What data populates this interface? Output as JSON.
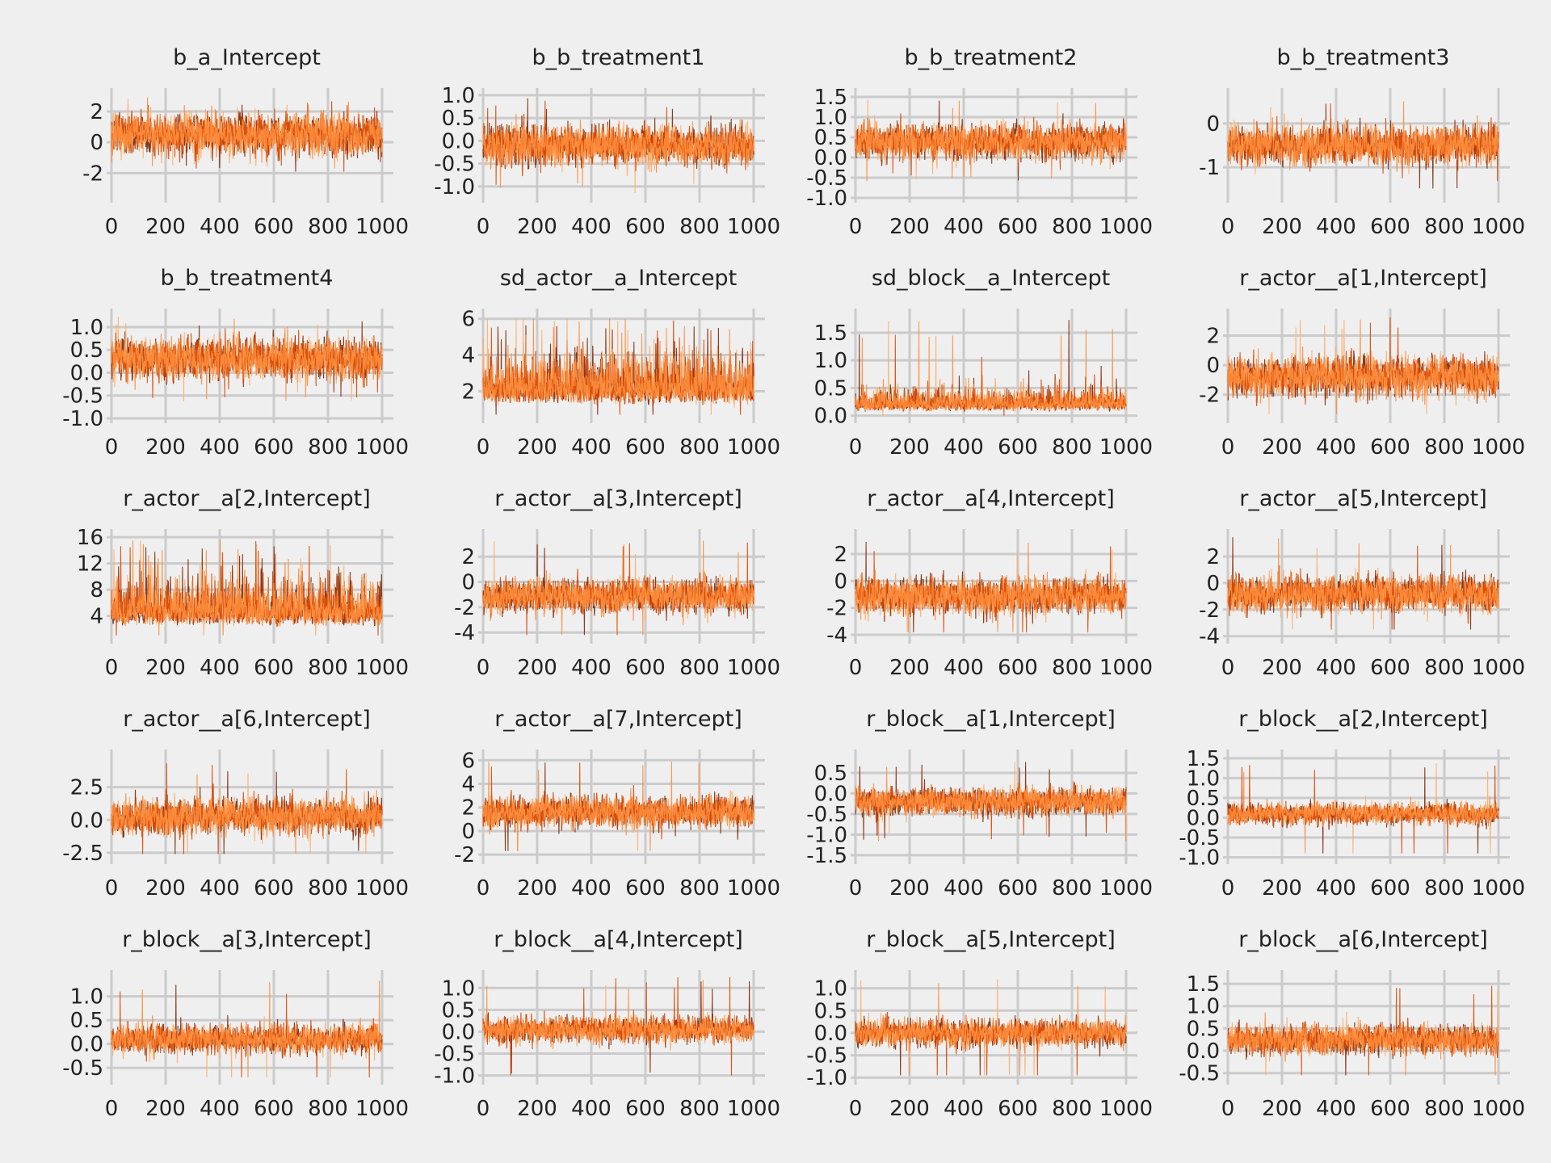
{
  "colors": {
    "background": "#efefef",
    "grid": "#cbcbcb",
    "chains": [
      "#7f2704",
      "#d94801",
      "#fd8d3c",
      "#fdae6b"
    ]
  },
  "chart_data": [
    {
      "type": "line",
      "title": "b_a_Intercept",
      "ylim": [
        -3.6,
        3.2
      ],
      "yticks": [
        -2,
        0,
        2
      ],
      "ytick_labels": [
        "-2",
        "0",
        "2"
      ],
      "xlim": [
        0,
        1000
      ],
      "xticks": [
        0,
        200,
        400,
        600,
        800,
        1000
      ],
      "xtick_labels": [
        "0",
        "200",
        "400",
        "600",
        "800",
        "1000"
      ],
      "chains": 4,
      "draws": 1000,
      "center": 0.5,
      "spread": 0.9,
      "min": -3.5,
      "max": 3.0
    },
    {
      "type": "line",
      "title": "b_b_treatment1",
      "ylim": [
        -1.25,
        1.05
      ],
      "yticks": [
        -1.0,
        -0.5,
        0.0,
        0.5,
        1.0
      ],
      "ytick_labels": [
        "-1.0",
        "-0.5",
        "0.0",
        "0.5",
        "1.0"
      ],
      "xlim": [
        0,
        1000
      ],
      "xticks": [
        0,
        200,
        400,
        600,
        800,
        1000
      ],
      "xtick_labels": [
        "0",
        "200",
        "400",
        "600",
        "800",
        "1000"
      ],
      "chains": 4,
      "draws": 1000,
      "center": -0.1,
      "spread": 0.3,
      "min": -1.2,
      "max": 0.95
    },
    {
      "type": "line",
      "title": "b_b_treatment2",
      "ylim": [
        -1.0,
        1.6
      ],
      "yticks": [
        -1.0,
        -0.5,
        0.0,
        0.5,
        1.0,
        1.5
      ],
      "ytick_labels": [
        "-1.0",
        "-0.5",
        "0.0",
        "0.5",
        "1.0",
        "1.5"
      ],
      "xlim": [
        0,
        1000
      ],
      "xticks": [
        0,
        200,
        400,
        600,
        800,
        1000
      ],
      "xtick_labels": [
        "0",
        "200",
        "400",
        "600",
        "800",
        "1000"
      ],
      "chains": 4,
      "draws": 1000,
      "center": 0.4,
      "spread": 0.3,
      "min": -0.9,
      "max": 1.45
    },
    {
      "type": "line",
      "title": "b_b_treatment3",
      "ylim": [
        -1.7,
        0.7
      ],
      "yticks": [
        -1,
        0
      ],
      "ytick_labels": [
        "-1",
        "0"
      ],
      "xlim": [
        0,
        1000
      ],
      "xticks": [
        0,
        200,
        400,
        600,
        800,
        1000
      ],
      "xtick_labels": [
        "0",
        "200",
        "400",
        "600",
        "800",
        "1000"
      ],
      "chains": 4,
      "draws": 1000,
      "center": -0.5,
      "spread": 0.3,
      "min": -1.6,
      "max": 0.55
    },
    {
      "type": "line",
      "title": "b_b_treatment4",
      "ylim": [
        -1.0,
        1.3
      ],
      "yticks": [
        -1.0,
        -0.5,
        0.0,
        0.5,
        1.0
      ],
      "ytick_labels": [
        "-1.0",
        "-0.5",
        "0.0",
        "0.5",
        "1.0"
      ],
      "xlim": [
        0,
        1000
      ],
      "xticks": [
        0,
        200,
        400,
        600,
        800,
        1000
      ],
      "xtick_labels": [
        "0",
        "200",
        "400",
        "600",
        "800",
        "1000"
      ],
      "chains": 4,
      "draws": 1000,
      "center": 0.3,
      "spread": 0.3,
      "min": -0.9,
      "max": 1.25
    },
    {
      "type": "line",
      "title": "sd_actor__a_Intercept",
      "ylim": [
        0.5,
        6.3
      ],
      "yticks": [
        2,
        4,
        6
      ],
      "ytick_labels": [
        "2",
        "4",
        "6"
      ],
      "xlim": [
        0,
        1000
      ],
      "xticks": [
        0,
        200,
        400,
        600,
        800,
        1000
      ],
      "xtick_labels": [
        "0",
        "200",
        "400",
        "600",
        "800",
        "1000"
      ],
      "chains": 4,
      "draws": 1000,
      "center": 2.1,
      "spread": 0.6,
      "min": 0.7,
      "max": 6.0
    },
    {
      "type": "line",
      "title": "sd_block__a_Intercept",
      "ylim": [
        -0.05,
        1.85
      ],
      "yticks": [
        0.0,
        0.5,
        1.0,
        1.5
      ],
      "ytick_labels": [
        "0.0",
        "0.5",
        "1.0",
        "1.5"
      ],
      "xlim": [
        0,
        1000
      ],
      "xticks": [
        0,
        200,
        400,
        600,
        800,
        1000
      ],
      "xtick_labels": [
        "0",
        "200",
        "400",
        "600",
        "800",
        "1000"
      ],
      "chains": 4,
      "draws": 1000,
      "center": 0.2,
      "spread": 0.18,
      "min": 0.0,
      "max": 1.75
    },
    {
      "type": "line",
      "title": "r_actor__a[1,Intercept]",
      "ylim": [
        -3.6,
        3.5
      ],
      "yticks": [
        -2,
        0,
        2
      ],
      "ytick_labels": [
        "-2",
        "0",
        "2"
      ],
      "xlim": [
        0,
        1000
      ],
      "xticks": [
        0,
        200,
        400,
        600,
        800,
        1000
      ],
      "xtick_labels": [
        "0",
        "200",
        "400",
        "600",
        "800",
        "1000"
      ],
      "chains": 4,
      "draws": 1000,
      "center": -0.8,
      "spread": 0.9,
      "min": -3.3,
      "max": 3.3
    },
    {
      "type": "line",
      "title": "r_actor__a[2,Intercept]",
      "ylim": [
        0.5,
        16.5
      ],
      "yticks": [
        4,
        8,
        12,
        16
      ],
      "ytick_labels": [
        "4",
        "8",
        "12",
        "16"
      ],
      "xlim": [
        0,
        1000
      ],
      "xticks": [
        0,
        200,
        400,
        600,
        800,
        1000
      ],
      "xtick_labels": [
        "0",
        "200",
        "400",
        "600",
        "800",
        "1000"
      ],
      "chains": 4,
      "draws": 1000,
      "center": 4.5,
      "spread": 1.4,
      "min": 1.0,
      "max": 15.5
    },
    {
      "type": "line",
      "title": "r_actor__a[3,Intercept]",
      "ylim": [
        -4.5,
        3.8
      ],
      "yticks": [
        -4,
        -2,
        0,
        2
      ],
      "ytick_labels": [
        "-4",
        "-2",
        "0",
        "2"
      ],
      "xlim": [
        0,
        1000
      ],
      "xticks": [
        0,
        200,
        400,
        600,
        800,
        1000
      ],
      "xtick_labels": [
        "0",
        "200",
        "400",
        "600",
        "800",
        "1000"
      ],
      "chains": 4,
      "draws": 1000,
      "center": -1.1,
      "spread": 0.9,
      "min": -4.2,
      "max": 3.3
    },
    {
      "type": "line",
      "title": "r_actor__a[4,Intercept]",
      "ylim": [
        -4.3,
        3.5
      ],
      "yticks": [
        -4,
        -2,
        0,
        2
      ],
      "ytick_labels": [
        "-4",
        "-2",
        "0",
        "2"
      ],
      "xlim": [
        0,
        1000
      ],
      "xticks": [
        0,
        200,
        400,
        600,
        800,
        1000
      ],
      "xtick_labels": [
        "0",
        "200",
        "400",
        "600",
        "800",
        "1000"
      ],
      "chains": 4,
      "draws": 1000,
      "center": -1.1,
      "spread": 0.9,
      "min": -3.8,
      "max": 3.1
    },
    {
      "type": "line",
      "title": "r_actor__a[5,Intercept]",
      "ylim": [
        -4.2,
        3.7
      ],
      "yticks": [
        -4,
        -2,
        0,
        2
      ],
      "ytick_labels": [
        "-4",
        "-2",
        "0",
        "2"
      ],
      "xlim": [
        0,
        1000
      ],
      "xticks": [
        0,
        200,
        400,
        600,
        800,
        1000
      ],
      "xtick_labels": [
        "0",
        "200",
        "400",
        "600",
        "800",
        "1000"
      ],
      "chains": 4,
      "draws": 1000,
      "center": -0.8,
      "spread": 0.9,
      "min": -3.5,
      "max": 3.5
    },
    {
      "type": "line",
      "title": "r_actor__a[6,Intercept]",
      "ylim": [
        -3.0,
        5.0
      ],
      "yticks": [
        -2.5,
        0.0,
        2.5
      ],
      "ytick_labels": [
        "-2.5",
        "0.0",
        "2.5"
      ],
      "xlim": [
        0,
        1000
      ],
      "xticks": [
        0,
        200,
        400,
        600,
        800,
        1000
      ],
      "xtick_labels": [
        "0",
        "200",
        "400",
        "600",
        "800",
        "1000"
      ],
      "chains": 4,
      "draws": 1000,
      "center": 0.3,
      "spread": 0.9,
      "min": -2.6,
      "max": 4.4
    },
    {
      "type": "line",
      "title": "r_actor__a[7,Intercept]",
      "ylim": [
        -2.4,
        6.5
      ],
      "yticks": [
        -2,
        0,
        2,
        4,
        6
      ],
      "ytick_labels": [
        "-2",
        "0",
        "2",
        "4",
        "6"
      ],
      "xlim": [
        0,
        1000
      ],
      "xticks": [
        0,
        200,
        400,
        600,
        800,
        1000
      ],
      "xtick_labels": [
        "0",
        "200",
        "400",
        "600",
        "800",
        "1000"
      ],
      "chains": 4,
      "draws": 1000,
      "center": 1.6,
      "spread": 0.9,
      "min": -1.7,
      "max": 6.1
    },
    {
      "type": "line",
      "title": "r_block__a[1,Intercept]",
      "ylim": [
        -1.6,
        0.95
      ],
      "yticks": [
        -1.5,
        -1.0,
        -0.5,
        0.0,
        0.5
      ],
      "ytick_labels": [
        "-1.5",
        "-1.0",
        "-0.5",
        "0.0",
        "0.5"
      ],
      "xlim": [
        0,
        1000
      ],
      "xticks": [
        0,
        200,
        400,
        600,
        800,
        1000
      ],
      "xtick_labels": [
        "0",
        "200",
        "400",
        "600",
        "800",
        "1000"
      ],
      "chains": 4,
      "draws": 1000,
      "center": -0.2,
      "spread": 0.22,
      "min": -1.4,
      "max": 0.8
    },
    {
      "type": "line",
      "title": "r_block__a[2,Intercept]",
      "ylim": [
        -1.05,
        1.6
      ],
      "yticks": [
        -1.0,
        -0.5,
        0.0,
        0.5,
        1.0,
        1.5
      ],
      "ytick_labels": [
        "-1.0",
        "-0.5",
        "0.0",
        "0.5",
        "1.0",
        "1.5"
      ],
      "xlim": [
        0,
        1000
      ],
      "xticks": [
        0,
        200,
        400,
        600,
        800,
        1000
      ],
      "xtick_labels": [
        "0",
        "200",
        "400",
        "600",
        "800",
        "1000"
      ],
      "chains": 4,
      "draws": 1000,
      "center": 0.1,
      "spread": 0.18,
      "min": -0.9,
      "max": 1.45
    },
    {
      "type": "line",
      "title": "r_block__a[3,Intercept]",
      "ylim": [
        -0.75,
        1.45
      ],
      "yticks": [
        -0.5,
        0.0,
        0.5,
        1.0
      ],
      "ytick_labels": [
        "-0.5",
        "0.0",
        "0.5",
        "1.0"
      ],
      "xlim": [
        0,
        1000
      ],
      "xticks": [
        0,
        200,
        400,
        600,
        800,
        1000
      ],
      "xtick_labels": [
        "0",
        "200",
        "400",
        "600",
        "800",
        "1000"
      ],
      "chains": 4,
      "draws": 1000,
      "center": 0.1,
      "spread": 0.2,
      "min": -0.7,
      "max": 1.35
    },
    {
      "type": "line",
      "title": "r_block__a[4,Intercept]",
      "ylim": [
        -1.1,
        1.3
      ],
      "yticks": [
        -1.0,
        -0.5,
        0.0,
        0.5,
        1.0
      ],
      "ytick_labels": [
        "-1.0",
        "-0.5",
        "0.0",
        "0.5",
        "1.0"
      ],
      "xlim": [
        0,
        1000
      ],
      "xticks": [
        0,
        200,
        400,
        600,
        800,
        1000
      ],
      "xtick_labels": [
        "0",
        "200",
        "400",
        "600",
        "800",
        "1000"
      ],
      "chains": 4,
      "draws": 1000,
      "center": 0.05,
      "spread": 0.2,
      "min": -1.0,
      "max": 1.25
    },
    {
      "type": "line",
      "title": "r_block__a[5,Intercept]",
      "ylim": [
        -1.05,
        1.3
      ],
      "yticks": [
        -1.0,
        -0.5,
        0.0,
        0.5,
        1.0
      ],
      "ytick_labels": [
        "-1.0",
        "-0.5",
        "0.0",
        "0.5",
        "1.0"
      ],
      "xlim": [
        0,
        1000
      ],
      "xticks": [
        0,
        200,
        400,
        600,
        800,
        1000
      ],
      "xtick_labels": [
        "0",
        "200",
        "400",
        "600",
        "800",
        "1000"
      ],
      "chains": 4,
      "draws": 1000,
      "center": 0.0,
      "spread": 0.2,
      "min": -0.95,
      "max": 1.2
    },
    {
      "type": "line",
      "title": "r_block__a[6,Intercept]",
      "ylim": [
        -0.65,
        1.7
      ],
      "yticks": [
        -0.5,
        0.0,
        0.5,
        1.0,
        1.5
      ],
      "ytick_labels": [
        "-0.5",
        "0.0",
        "0.5",
        "1.0",
        "1.5"
      ],
      "xlim": [
        0,
        1000
      ],
      "xticks": [
        0,
        200,
        400,
        600,
        800,
        1000
      ],
      "xtick_labels": [
        "0",
        "200",
        "400",
        "600",
        "800",
        "1000"
      ],
      "chains": 4,
      "draws": 1000,
      "center": 0.25,
      "spread": 0.22,
      "min": -0.55,
      "max": 1.6
    }
  ]
}
